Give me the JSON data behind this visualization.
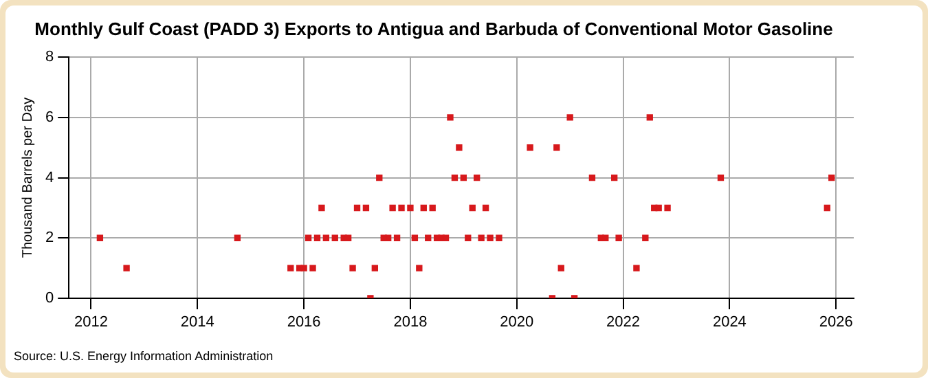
{
  "chart_data": {
    "type": "scatter",
    "title": "Monthly Gulf Coast (PADD 3) Exports to Antigua and Barbuda of Conventional Motor Gasoline",
    "ylabel": "Thousand Barrels per Day",
    "annotations": [
      "Source: U.S. Energy Information Administration"
    ],
    "x": [
      "2012-03",
      "2012-09",
      "2014-10",
      "2015-10",
      "2015-12",
      "2016-01",
      "2016-02",
      "2016-03",
      "2016-04",
      "2016-05",
      "2016-06",
      "2016-08",
      "2016-10",
      "2016-11",
      "2016-12",
      "2017-01",
      "2017-03",
      "2017-04",
      "2017-05",
      "2017-06",
      "2017-07",
      "2017-08",
      "2017-09",
      "2017-10",
      "2017-11",
      "2018-01",
      "2018-02",
      "2018-03",
      "2018-04",
      "2018-05",
      "2018-06",
      "2018-07",
      "2018-08",
      "2018-09",
      "2018-10",
      "2018-11",
      "2018-12",
      "2019-01",
      "2019-02",
      "2019-03",
      "2019-04",
      "2019-05",
      "2019-06",
      "2019-07",
      "2019-09",
      "2020-04",
      "2020-09",
      "2020-10",
      "2020-11",
      "2021-01",
      "2021-02",
      "2021-06",
      "2021-08",
      "2021-09",
      "2021-11",
      "2021-12",
      "2022-04",
      "2022-06",
      "2022-07",
      "2022-08",
      "2022-09",
      "2022-11",
      "2023-11",
      "2025-11",
      "2025-12"
    ],
    "series": [
      {
        "color": "#d7191c",
        "values": [
          2,
          1,
          2,
          1,
          1,
          1,
          2,
          1,
          2,
          3,
          2,
          2,
          2,
          2,
          1,
          3,
          3,
          0,
          1,
          4,
          2,
          2,
          3,
          2,
          3,
          3,
          2,
          1,
          3,
          2,
          3,
          2,
          2,
          2,
          6,
          4,
          5,
          4,
          2,
          3,
          4,
          2,
          3,
          2,
          2,
          5,
          0,
          5,
          1,
          6,
          0,
          4,
          2,
          2,
          4,
          2,
          1,
          2,
          6,
          3,
          3,
          3,
          4,
          3,
          4
        ]
      }
    ],
    "xlim": [
      "2011-08",
      "2026-05"
    ],
    "xticks": [
      "2012",
      "2014",
      "2016",
      "2018",
      "2020",
      "2022",
      "2024",
      "2026"
    ],
    "ylim": [
      0,
      8
    ],
    "yticks": [
      0,
      2,
      4,
      6,
      8
    ],
    "grid": true,
    "legend": false,
    "marker": "square"
  }
}
